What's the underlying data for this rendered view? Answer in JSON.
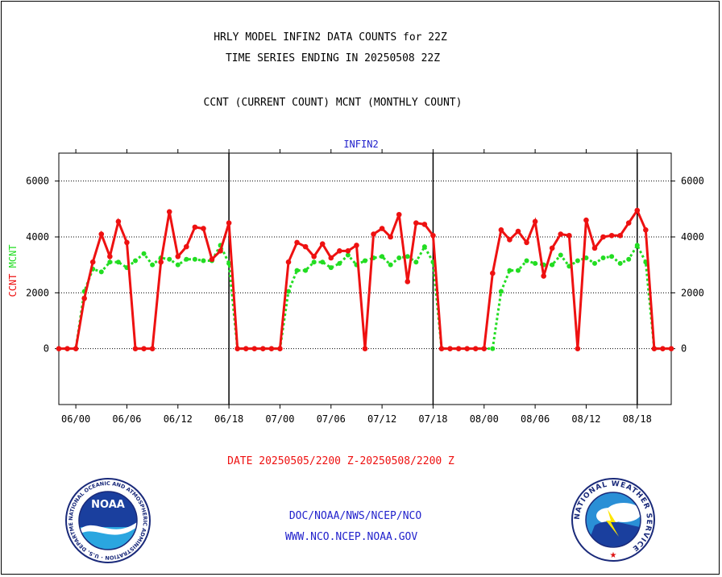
{
  "header": {
    "title_line1": "HRLY MODEL INFIN2 DATA COUNTS for 22Z",
    "title_line2": "TIME SERIES ENDING IN 20250508 22Z",
    "subtitle": "CCNT (CURRENT COUNT) MCNT (MONTHLY COUNT)"
  },
  "footer": {
    "date_range": "DATE 20250505/2200 Z-20250508/2200 Z",
    "org_path": "DOC/NOAA/NWS/NCEP/NCO",
    "website": "WWW.NCO.NCEP.NOAA.GOV"
  },
  "logos": {
    "noaa_text": "NOAA",
    "noaa_ring": "NATIONAL OCEANIC AND ATMOSPHERIC ADMINISTRATION · U.S. DEPARTMENT OF COMMERCE",
    "nws_ring": "NATIONAL WEATHER SERVICE"
  },
  "colors": {
    "ccnt": "#ee1111",
    "mcnt": "#22dd22",
    "panel_label": "#2222cc",
    "footer_red": "#ee1111",
    "footer_blue": "#2222cc"
  },
  "chart_data": {
    "type": "line",
    "title": "INFIN2",
    "ylabel_parts": [
      {
        "text": "CCNT",
        "color": "#ee1111"
      },
      {
        "text": "MCNT",
        "color": "#22dd22"
      }
    ],
    "ylim": [
      -2000,
      7000
    ],
    "yticks": [
      0,
      2000,
      4000,
      6000
    ],
    "xlim": [
      -2,
      70
    ],
    "xticks": [
      {
        "x": 0,
        "label": "06/00"
      },
      {
        "x": 6,
        "label": "06/06"
      },
      {
        "x": 12,
        "label": "06/12"
      },
      {
        "x": 18,
        "label": "06/18"
      },
      {
        "x": 24,
        "label": "07/00"
      },
      {
        "x": 30,
        "label": "07/06"
      },
      {
        "x": 36,
        "label": "07/12"
      },
      {
        "x": 42,
        "label": "07/18"
      },
      {
        "x": 48,
        "label": "08/00"
      },
      {
        "x": 54,
        "label": "08/06"
      },
      {
        "x": 60,
        "label": "08/12"
      },
      {
        "x": 66,
        "label": "08/18"
      }
    ],
    "grid": true,
    "day_boundaries": [
      18,
      42,
      66
    ],
    "x": [
      -2,
      -1,
      0,
      1,
      2,
      3,
      4,
      5,
      6,
      7,
      8,
      9,
      10,
      11,
      12,
      13,
      14,
      15,
      16,
      17,
      18,
      19,
      20,
      21,
      22,
      23,
      24,
      25,
      26,
      27,
      28,
      29,
      30,
      31,
      32,
      33,
      34,
      35,
      36,
      37,
      38,
      39,
      40,
      41,
      42,
      43,
      44,
      45,
      46,
      47,
      48,
      49,
      50,
      51,
      52,
      53,
      54,
      55,
      56,
      57,
      58,
      59,
      60,
      61,
      62,
      63,
      64,
      65,
      66,
      67,
      68,
      69,
      70
    ],
    "series": [
      {
        "name": "CCNT",
        "color": "#ee1111",
        "style": "solid",
        "values": [
          0,
          0,
          0,
          1800,
          3100,
          4100,
          3300,
          4550,
          3800,
          0,
          0,
          0,
          3100,
          4900,
          3300,
          3650,
          4350,
          4300,
          3200,
          3500,
          4500,
          0,
          0,
          0,
          0,
          0,
          0,
          3100,
          3800,
          3650,
          3300,
          3750,
          3250,
          3500,
          3500,
          3700,
          0,
          4100,
          4300,
          4000,
          4800,
          2400,
          4500,
          4450,
          4050,
          0,
          0,
          0,
          0,
          0,
          0,
          2700,
          4250,
          3900,
          4200,
          3800,
          4550,
          2600,
          3600,
          4100,
          4050,
          0,
          4600,
          3600,
          4000,
          4050,
          4050,
          4500,
          4950,
          4250,
          0,
          0,
          0
        ]
      },
      {
        "name": "MCNT",
        "color": "#22dd22",
        "style": "dotted",
        "values": [
          0,
          0,
          0,
          2050,
          2850,
          2750,
          3100,
          3100,
          2900,
          3150,
          3400,
          3000,
          3250,
          3200,
          3000,
          3200,
          3200,
          3150,
          3150,
          3700,
          3050,
          0,
          0,
          0,
          0,
          0,
          0,
          2050,
          2800,
          2800,
          3100,
          3100,
          2900,
          3050,
          3350,
          3000,
          3150,
          3250,
          3300,
          3000,
          3250,
          3300,
          3100,
          3650,
          3100,
          0,
          0,
          0,
          0,
          0,
          0,
          0,
          2050,
          2800,
          2800,
          3150,
          3050,
          3000,
          3000,
          3350,
          2950,
          3150,
          3250,
          3050,
          3250,
          3300,
          3050,
          3200,
          3700,
          3100,
          0,
          0,
          0
        ]
      }
    ]
  }
}
